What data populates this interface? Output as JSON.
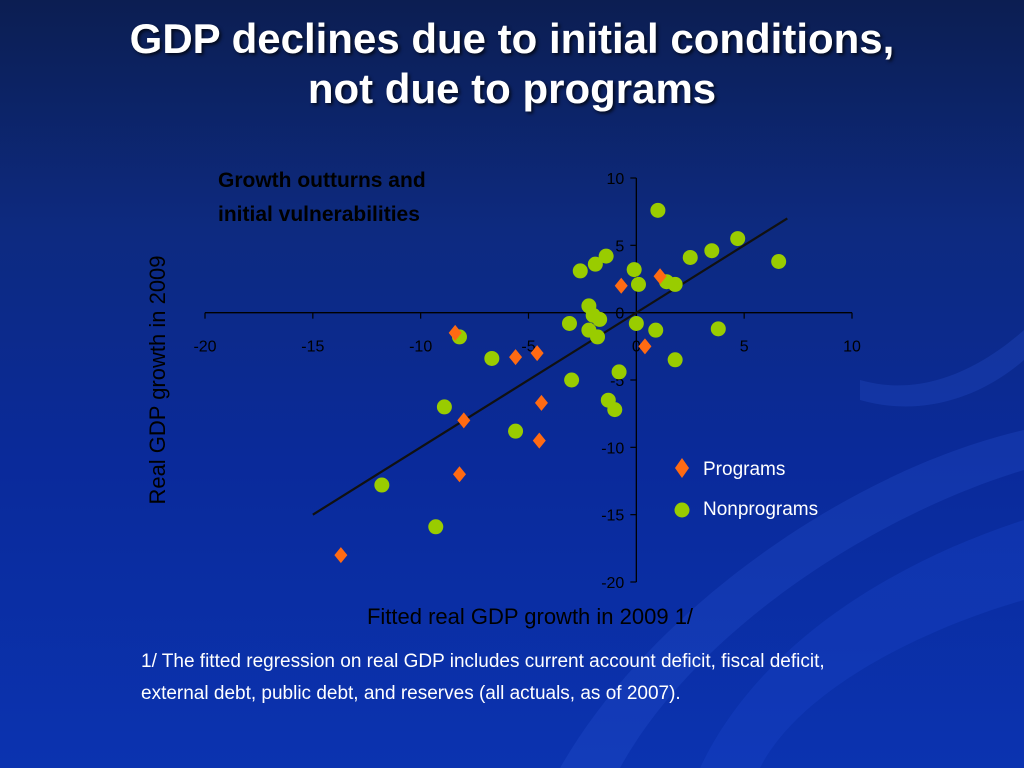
{
  "slide": {
    "title_line1": "GDP declines due to initial conditions,",
    "title_line2": "not due to programs",
    "footnote": "1/ The fitted regression on real GDP includes current account deficit, fiscal deficit, external debt, public debt, and reserves (all actuals, as of 2007)."
  },
  "colors": {
    "programs": "#ff6a13",
    "nonprograms": "#99cc00",
    "fit_line": "#111111",
    "axis": "#000000"
  },
  "chart_data": {
    "type": "scatter",
    "title_line1": "Growth outturns and",
    "title_line2": "initial vulnerabilities",
    "xlabel": "Fitted real GDP growth in 2009 1/",
    "ylabel": "Real GDP growth in 2009",
    "xlim": [
      -20,
      10
    ],
    "ylim": [
      -20,
      10
    ],
    "xticks": [
      -20,
      -15,
      -10,
      -5,
      0,
      5,
      10
    ],
    "yticks": [
      10,
      5,
      0,
      -5,
      -10,
      -15,
      -20
    ],
    "legend_position": "lower-right",
    "fit_line": {
      "x": [
        -15,
        7
      ],
      "y": [
        -15,
        7
      ]
    },
    "series": [
      {
        "name": "Programs",
        "marker": "diamond",
        "points": [
          [
            -13.7,
            -18
          ],
          [
            -8.2,
            -12
          ],
          [
            -8.0,
            -8
          ],
          [
            -8.4,
            -1.5
          ],
          [
            -5.6,
            -3.3
          ],
          [
            -4.6,
            -3.0
          ],
          [
            -4.4,
            -6.7
          ],
          [
            -4.5,
            -9.5
          ],
          [
            -0.7,
            2.0
          ],
          [
            1.1,
            2.7
          ],
          [
            0.4,
            -2.5
          ]
        ]
      },
      {
        "name": "Nonprograms",
        "marker": "circle",
        "points": [
          [
            1.0,
            7.6
          ],
          [
            4.7,
            5.5
          ],
          [
            6.6,
            3.8
          ],
          [
            3.5,
            4.6
          ],
          [
            2.5,
            4.1
          ],
          [
            1.4,
            2.3
          ],
          [
            1.8,
            2.1
          ],
          [
            0.1,
            2.1
          ],
          [
            -0.1,
            3.2
          ],
          [
            -1.4,
            4.2
          ],
          [
            -1.9,
            3.6
          ],
          [
            -2.6,
            3.1
          ],
          [
            -2.2,
            0.5
          ],
          [
            -2.0,
            -0.2
          ],
          [
            -1.7,
            -0.5
          ],
          [
            -3.1,
            -0.8
          ],
          [
            -2.2,
            -1.3
          ],
          [
            -1.8,
            -1.8
          ],
          [
            0.0,
            -0.8
          ],
          [
            0.9,
            -1.3
          ],
          [
            3.8,
            -1.2
          ],
          [
            1.8,
            -3.5
          ],
          [
            -0.8,
            -4.4
          ],
          [
            -3.0,
            -5.0
          ],
          [
            -1.3,
            -6.5
          ],
          [
            -1.0,
            -7.2
          ],
          [
            -5.6,
            -8.8
          ],
          [
            -8.2,
            -1.8
          ],
          [
            -6.7,
            -3.4
          ],
          [
            -8.9,
            -7.0
          ],
          [
            -11.8,
            -12.8
          ],
          [
            -9.3,
            -15.9
          ]
        ]
      }
    ]
  }
}
